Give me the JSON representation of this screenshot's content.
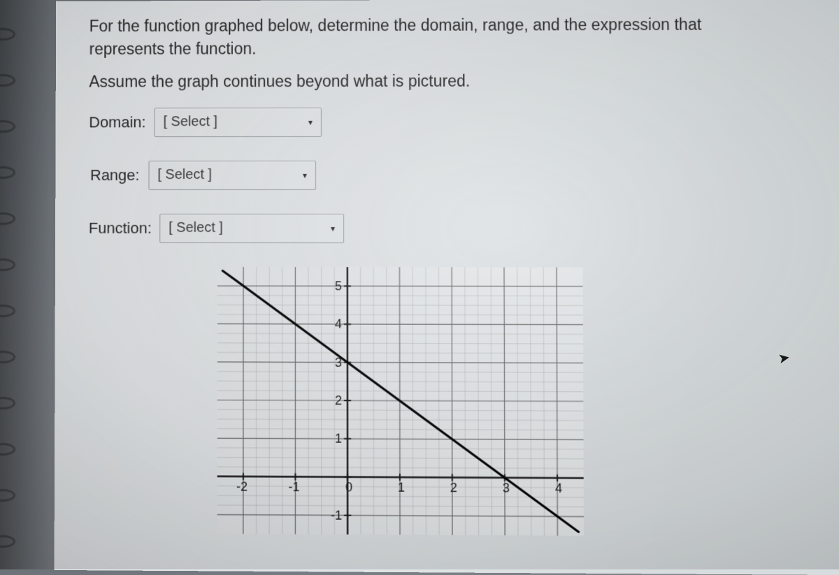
{
  "question": {
    "line1": "For the function graphed below, determine the domain, range, and the expression that",
    "line2": "represents the function.",
    "assume": "Assume the graph continues beyond what is pictured."
  },
  "selectors": {
    "domain": {
      "label": "Domain:",
      "placeholder": "[ Select ]"
    },
    "range": {
      "label": "Range:",
      "placeholder": "[ Select ]"
    },
    "function": {
      "label": "Function:",
      "placeholder": "[ Select ]"
    }
  },
  "chart": {
    "type": "line",
    "xlim": [
      -2.5,
      4.5
    ],
    "ylim": [
      -1.5,
      5.5
    ],
    "xtick_major": [
      -2,
      -1,
      0,
      1,
      2,
      3,
      4
    ],
    "ytick_major": [
      -1,
      0,
      1,
      2,
      3,
      4,
      5
    ],
    "minor_subdivisions": 4,
    "grid_color_major": "#6b6b6b",
    "grid_color_minor": "#b5b5b5",
    "axis_color": "#1a1a1a",
    "background_color": "#e5e8ea",
    "line_color": "#000000",
    "line_width": 3.2,
    "tick_label_fontsize": 18,
    "tick_label_color": "#1a1a1a",
    "function_points": [
      {
        "x": -2.4,
        "y": 5.4
      },
      {
        "x": 4.4,
        "y": -1.4
      }
    ]
  },
  "spiral": {
    "count": 12,
    "start_top": 40,
    "gap": 66
  }
}
